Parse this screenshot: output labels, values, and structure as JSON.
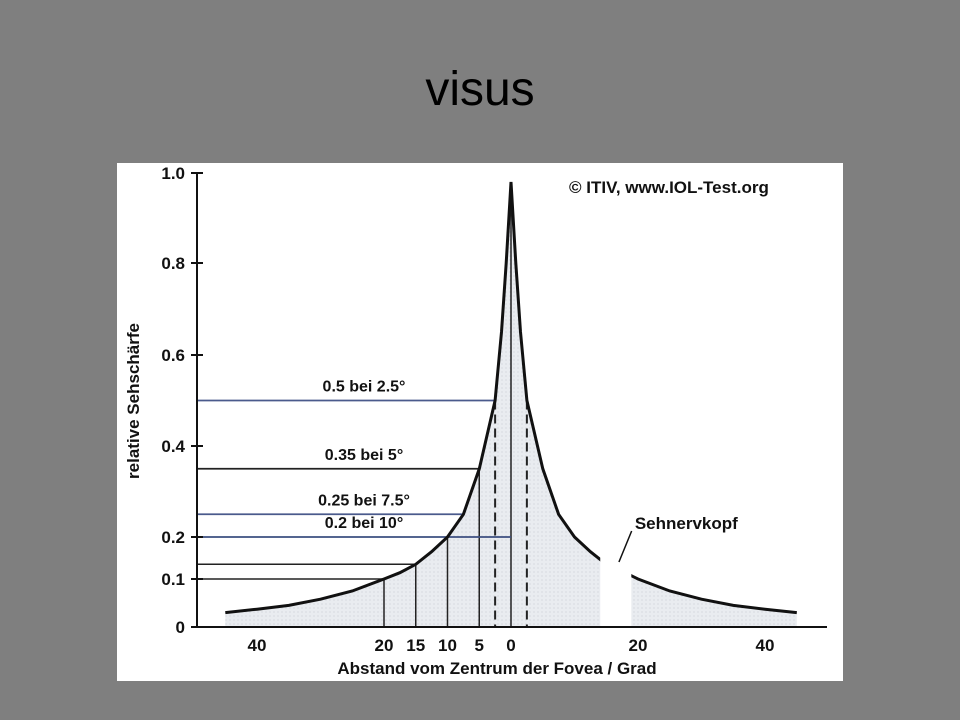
{
  "slide": {
    "title": "visus"
  },
  "chart_data": {
    "type": "area",
    "copyright": "© ITIV, www.IOL-Test.org",
    "ylabel": "relative Sehschärfe",
    "xlabel": "Abstand vom Zentrum der Fovea /  Grad",
    "ylim": [
      0,
      1.0
    ],
    "yticks": [
      "0",
      "0.1",
      "0.2",
      "0.4",
      "0.6",
      "0.8",
      "1.0"
    ],
    "ytick_values": [
      0,
      0.1,
      0.2,
      0.4,
      0.6,
      0.8,
      1.0
    ],
    "xticks_left": [
      {
        "label": "40",
        "value": 40
      },
      {
        "label": "20",
        "value": 20
      },
      {
        "label": "15",
        "value": 15
      },
      {
        "label": "10",
        "value": 10
      },
      {
        "label": "5",
        "value": 5
      },
      {
        "label": "0",
        "value": 0
      }
    ],
    "xticks_right": [
      {
        "label": "20",
        "value": 20
      },
      {
        "label": "40",
        "value": 40
      }
    ],
    "annotations": [
      {
        "label": "0.5 bei 2.5°",
        "degree": 2.5,
        "value": 0.5
      },
      {
        "label": "0.35 bei 5°",
        "degree": 5,
        "value": 0.35
      },
      {
        "label": "0.25 bei 7.5°",
        "degree": 7.5,
        "value": 0.25
      },
      {
        "label": "0.2 bei 10°",
        "degree": 10,
        "value": 0.2
      }
    ],
    "blind_spot_label": "Sehnervkopf",
    "blind_spot_range": [
      15,
      18
    ],
    "curve": {
      "x": [
        -50,
        -45,
        -40,
        -35,
        -30,
        -25,
        -20,
        -17.5,
        -15,
        -12.5,
        -10,
        -7.5,
        -5,
        -2.5,
        -1.5,
        -0.75,
        0,
        0.75,
        1.5,
        2.5,
        5,
        7.5,
        10,
        12.5,
        15,
        18,
        20,
        25,
        30,
        35,
        40,
        45,
        50
      ],
      "y": [
        0.025,
        0.03,
        0.037,
        0.045,
        0.058,
        0.075,
        0.1,
        0.115,
        0.135,
        0.165,
        0.2,
        0.25,
        0.35,
        0.5,
        0.65,
        0.8,
        0.98,
        0.8,
        0.65,
        0.5,
        0.35,
        0.25,
        0.2,
        0.165,
        0.135,
        0.115,
        0.1,
        0.075,
        0.058,
        0.045,
        0.037,
        0.03,
        0.025
      ]
    },
    "drop_lines": [
      20,
      15,
      10,
      5,
      0
    ]
  }
}
